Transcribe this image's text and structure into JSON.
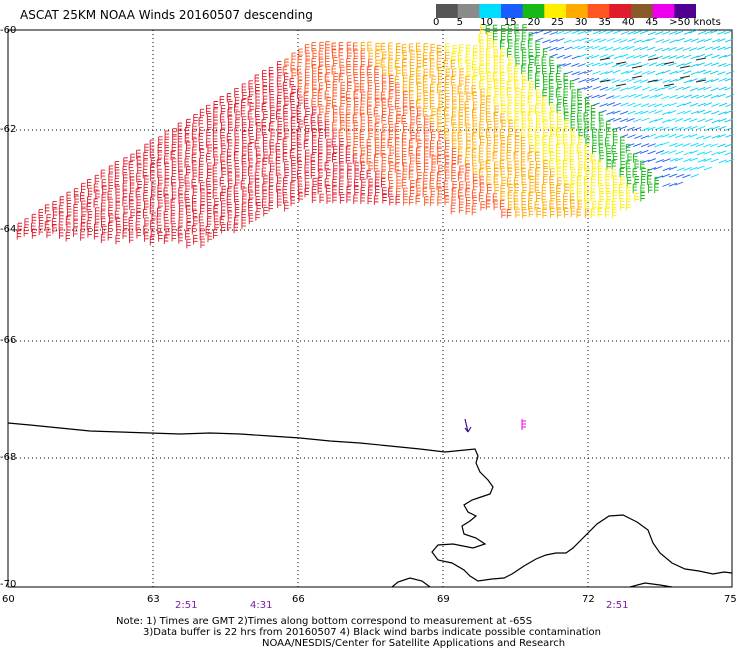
{
  "title": "ASCAT 25KM NOAA Winds 20160507 descending",
  "legend": {
    "labels": [
      "0",
      "5",
      "10",
      "15",
      "20",
      "25",
      "30",
      "35",
      "40",
      "45",
      ">50 knots"
    ],
    "colors": [
      "#555555",
      "#8a8a8a",
      "#00ddff",
      "#1a5dff",
      "#18b818",
      "#ffee00",
      "#ffaa00",
      "#ff5522",
      "#e01c2c",
      "#8b5a2b",
      "#ee00ee",
      "#500090"
    ]
  },
  "y_axis_labels": [
    "-60",
    "-62",
    "-64",
    "-66",
    "-68",
    "-70"
  ],
  "x_axis_labels": [
    "60",
    "63",
    "66",
    "69",
    "72",
    "75"
  ],
  "pass_times": [
    "2:51",
    "4:31",
    "2:51"
  ],
  "notes": {
    "line1": "Note: 1) Times are GMT 2)Times along bottom correspond to measurement at -65S",
    "line2": "3)Data buffer is 22 hrs from 20160507 4) Black wind barbs indicate possible contamination",
    "line3": "NOAA/NESDIS/Center for Satellite Applications and Research"
  },
  "map": {
    "lon_range": [
      60,
      75
    ],
    "lat_range": [
      -60,
      -70
    ],
    "wind_swath_lat_range": [
      -60,
      -64.5
    ],
    "wind_swath_lon_range": [
      60,
      75
    ]
  }
}
